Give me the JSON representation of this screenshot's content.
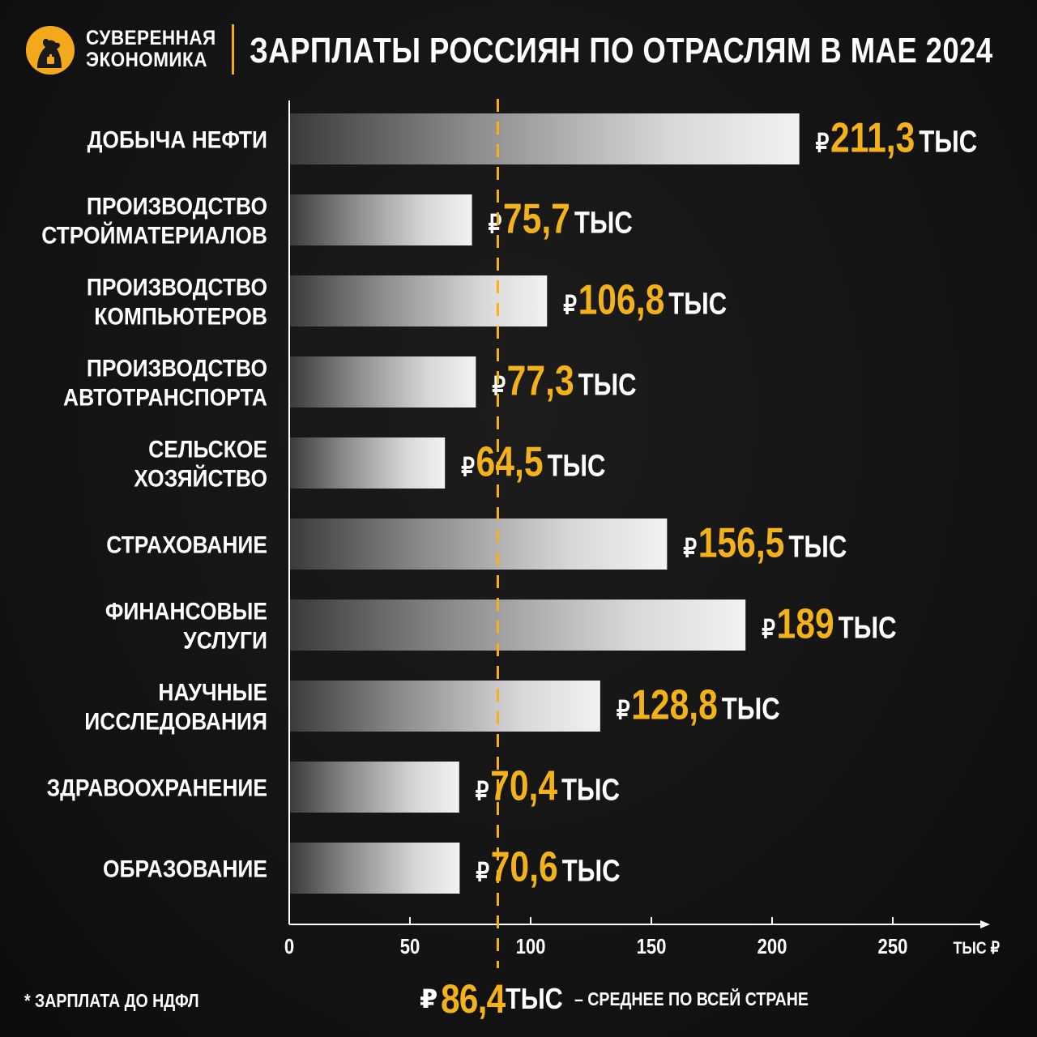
{
  "header": {
    "logo_line1": "СУВЕРЕННАЯ",
    "logo_line2": "ЭКОНОМИКА",
    "title": "ЗАРПЛАТЫ РОССИЯН ПО ОТРАСЛЯМ В МАЕ 2024"
  },
  "chart_data": {
    "type": "bar",
    "orientation": "horizontal",
    "categories": [
      [
        "ДОБЫЧА НЕФТИ"
      ],
      [
        "ПРОИЗВОДСТВО",
        "СТРОЙМАТЕРИАЛОВ"
      ],
      [
        "ПРОИЗВОДСТВО",
        "КОМПЬЮТЕРОВ"
      ],
      [
        "ПРОИЗВОДСТВО",
        "АВТОТРАНСПОРТА"
      ],
      [
        "СЕЛЬСКОЕ",
        "ХОЗЯЙСТВО"
      ],
      [
        "СТРАХОВАНИЕ"
      ],
      [
        "ФИНАНСОВЫЕ",
        "УСЛУГИ"
      ],
      [
        "НАУЧНЫЕ",
        "ИССЛЕДОВАНИЯ"
      ],
      [
        "ЗДРАВООХРАНЕНИЕ"
      ],
      [
        "ОБРАЗОВАНИЕ"
      ]
    ],
    "values": [
      211.3,
      75.7,
      106.8,
      77.3,
      64.5,
      156.5,
      189,
      128.8,
      70.4,
      70.6
    ],
    "value_labels": [
      "211,3",
      "75,7",
      "106,8",
      "77,3",
      "64,5",
      "156,5",
      "189",
      "128,8",
      "70,4",
      "70,6"
    ],
    "value_prefix": "₽",
    "value_suffix": "ТЫС",
    "xlim": [
      0,
      265
    ],
    "x_ticks": [
      0,
      50,
      100,
      150,
      200,
      250
    ],
    "x_unit_label": "ТЫС ₽",
    "reference_line": {
      "value": 86.4,
      "label": "86,4",
      "style": "dashed",
      "color": "#f4b21a"
    },
    "colors": {
      "accent": "#f4b21a",
      "text": "#ffffff",
      "axis": "#ffffff"
    }
  },
  "average": {
    "ruble": "₽",
    "value": "86,4",
    "unit": "ТЫС",
    "caption": "– СРЕДНЕЕ ПО ВСЕЙ СТРАНЕ"
  },
  "footnote": "* ЗАРПЛАТА ДО НДФЛ"
}
